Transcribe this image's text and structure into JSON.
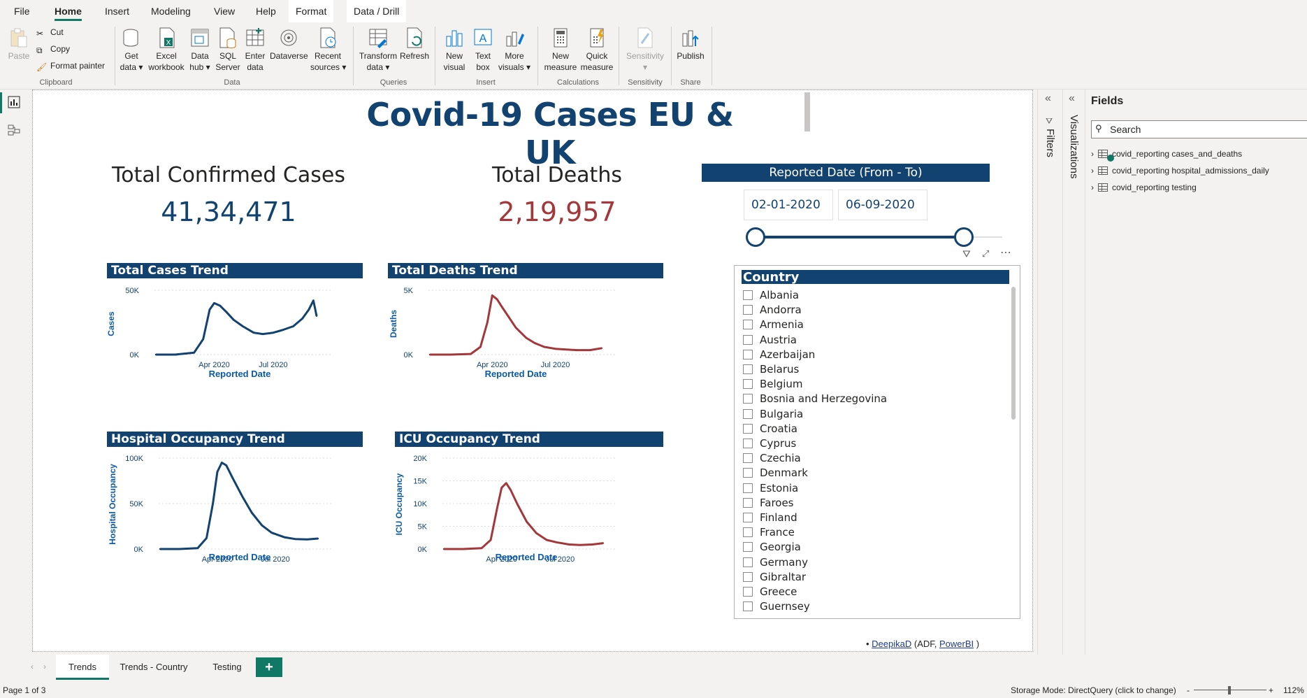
{
  "menu": {
    "items": [
      "File",
      "Home",
      "Insert",
      "Modeling",
      "View",
      "Help",
      "Format",
      "Data / Drill"
    ],
    "active": "Home"
  },
  "ribbon": {
    "clipboard": {
      "paste": "Paste",
      "cut": "Cut",
      "copy": "Copy",
      "format_painter": "Format painter",
      "label": "Clipboard"
    },
    "data": {
      "get_data": "Get\ndata ▾",
      "excel": "Excel\nworkbook",
      "data_hub": "Data\nhub ▾",
      "sql": "SQL\nServer",
      "enter_data": "Enter\ndata",
      "dataverse": "Dataverse",
      "recent": "Recent\nsources ▾",
      "label": "Data"
    },
    "queries": {
      "transform": "Transform\ndata ▾",
      "refresh": "Refresh",
      "label": "Queries"
    },
    "insert": {
      "new_visual": "New\nvisual",
      "text_box": "Text\nbox",
      "more_visuals": "More\nvisuals ▾",
      "label": "Insert"
    },
    "calculations": {
      "new_measure": "New\nmeasure",
      "quick_measure": "Quick\nmeasure",
      "label": "Calculations"
    },
    "sensitivity": {
      "button": "Sensitivity\n▾",
      "label": "Sensitivity"
    },
    "share": {
      "publish": "Publish",
      "label": "Share"
    }
  },
  "report": {
    "title": "Covid-19 Cases EU & UK",
    "kpis": {
      "cases_label": "Total Confirmed Cases",
      "cases_value": "41,34,471",
      "deaths_label": "Total Deaths",
      "deaths_value": "2,19,957"
    },
    "footer": {
      "bullet": "• ",
      "author": "DeepikaD",
      "mid": " (ADF, ",
      "tool": "PowerBI",
      "end": " )"
    }
  },
  "slicers": {
    "date": {
      "title": "Reported Date (From - To)",
      "from": "02-01-2020",
      "to": "06-09-2020"
    },
    "country": {
      "title": "Country",
      "items": [
        "Albania",
        "Andorra",
        "Armenia",
        "Austria",
        "Azerbaijan",
        "Belarus",
        "Belgium",
        "Bosnia and Herzegovina",
        "Bulgaria",
        "Croatia",
        "Cyprus",
        "Czechia",
        "Denmark",
        "Estonia",
        "Faroes",
        "Finland",
        "France",
        "Georgia",
        "Germany",
        "Gibraltar",
        "Greece",
        "Guernsey"
      ]
    }
  },
  "chart_data": [
    {
      "type": "line",
      "title": "Total Cases Trend",
      "xlabel": "Reported Date",
      "ylabel": "Cases",
      "color": "#12426f",
      "yticks": [
        "0K",
        "50K"
      ],
      "ylim": [
        0,
        50000
      ],
      "xticks": [
        "Apr 2020",
        "Jul 2020"
      ],
      "x": [
        "2020-01-02",
        "2020-02-01",
        "2020-03-01",
        "2020-03-15",
        "2020-03-25",
        "2020-04-01",
        "2020-04-10",
        "2020-04-20",
        "2020-05-01",
        "2020-05-15",
        "2020-06-01",
        "2020-06-15",
        "2020-07-01",
        "2020-07-15",
        "2020-08-01",
        "2020-08-15",
        "2020-08-25",
        "2020-09-01",
        "2020-09-06"
      ],
      "values": [
        0,
        0,
        1500,
        12000,
        35000,
        40000,
        38000,
        33000,
        27000,
        22000,
        17000,
        16000,
        17000,
        19000,
        22000,
        28000,
        35000,
        42000,
        30000
      ]
    },
    {
      "type": "line",
      "title": "Total Deaths Trend",
      "xlabel": "Reported Date",
      "ylabel": "Deaths",
      "color": "#a4373a",
      "yticks": [
        "0K",
        "5K"
      ],
      "ylim": [
        0,
        5000
      ],
      "xticks": [
        "Apr 2020",
        "Jul 2020"
      ],
      "x": [
        "2020-01-02",
        "2020-02-01",
        "2020-03-01",
        "2020-03-15",
        "2020-03-25",
        "2020-04-01",
        "2020-04-08",
        "2020-04-15",
        "2020-04-25",
        "2020-05-05",
        "2020-05-20",
        "2020-06-01",
        "2020-06-15",
        "2020-07-01",
        "2020-07-15",
        "2020-08-01",
        "2020-08-20",
        "2020-09-06"
      ],
      "values": [
        0,
        0,
        50,
        600,
        2500,
        4600,
        4300,
        3700,
        2900,
        2100,
        1300,
        900,
        600,
        450,
        400,
        350,
        350,
        500
      ]
    },
    {
      "type": "line",
      "title": "Hospital Occupancy Trend",
      "xlabel": "Reported Date",
      "ylabel": "Hospital Occupancy",
      "color": "#12426f",
      "yticks": [
        "0K",
        "50K",
        "100K"
      ],
      "ylim": [
        0,
        100000
      ],
      "xticks": [
        "Apr 2020",
        "Jul 2020"
      ],
      "x": [
        "2020-01-02",
        "2020-02-01",
        "2020-03-01",
        "2020-03-15",
        "2020-03-25",
        "2020-04-01",
        "2020-04-08",
        "2020-04-15",
        "2020-04-25",
        "2020-05-10",
        "2020-05-25",
        "2020-06-10",
        "2020-06-25",
        "2020-07-15",
        "2020-08-01",
        "2020-08-20",
        "2020-09-06"
      ],
      "values": [
        0,
        0,
        1000,
        12000,
        50000,
        85000,
        95000,
        92000,
        78000,
        58000,
        40000,
        26000,
        18000,
        13000,
        11000,
        10500,
        11500
      ]
    },
    {
      "type": "line",
      "title": "ICU Occupancy Trend",
      "xlabel": "Reported Date",
      "ylabel": "ICU Occupancy",
      "color": "#a4373a",
      "yticks": [
        "0K",
        "5K",
        "10K",
        "15K",
        "20K"
      ],
      "ylim": [
        0,
        20000
      ],
      "xticks": [
        "Apr 2020",
        "Jul 2020"
      ],
      "x": [
        "2020-01-02",
        "2020-02-01",
        "2020-03-01",
        "2020-03-15",
        "2020-03-25",
        "2020-04-01",
        "2020-04-08",
        "2020-04-15",
        "2020-04-25",
        "2020-05-10",
        "2020-05-25",
        "2020-06-10",
        "2020-06-25",
        "2020-07-15",
        "2020-08-01",
        "2020-08-20",
        "2020-09-06"
      ],
      "values": [
        0,
        0,
        200,
        2000,
        9000,
        13500,
        14500,
        13000,
        10000,
        6000,
        3500,
        2000,
        1500,
        1000,
        900,
        1000,
        1300
      ]
    }
  ],
  "panes": {
    "filters": "Filters",
    "visualizations": "Visualizations",
    "fields": {
      "title": "Fields",
      "search_placeholder": "Search",
      "tables": [
        "covid_reporting cases_and_deaths",
        "covid_reporting hospital_admissions_daily",
        "covid_reporting testing"
      ]
    }
  },
  "tabs": {
    "pages": [
      "Trends",
      "Trends - Country",
      "Testing"
    ],
    "active": "Trends",
    "add": "+"
  },
  "status": {
    "page": "Page 1 of 3",
    "storage": "Storage Mode: DirectQuery (click to change)",
    "zoom": "112%",
    "minus": "-",
    "plus": "+"
  },
  "colors": {
    "accent": "#117865",
    "navy": "#12426f",
    "red": "#a4373a"
  }
}
